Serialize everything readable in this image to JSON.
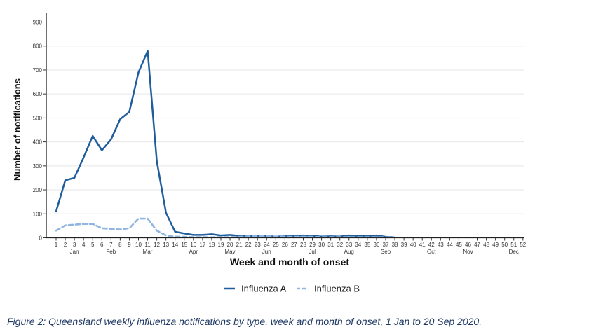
{
  "chart_data": {
    "type": "line",
    "xlabel": "Week and month of onset",
    "ylabel": "Number of notifications",
    "ylim": [
      0,
      900
    ],
    "yticks": [
      0,
      100,
      200,
      300,
      400,
      500,
      600,
      700,
      800,
      900
    ],
    "xlim": [
      1,
      52
    ],
    "x": [
      1,
      2,
      3,
      4,
      5,
      6,
      7,
      8,
      9,
      10,
      11,
      12,
      13,
      14,
      15,
      16,
      17,
      18,
      19,
      20,
      21,
      22,
      23,
      24,
      25,
      26,
      27,
      28,
      29,
      30,
      31,
      32,
      33,
      34,
      35,
      36,
      37,
      38,
      39,
      40,
      41,
      42,
      43,
      44,
      45,
      46,
      47,
      48,
      49,
      50,
      51,
      52
    ],
    "months": [
      {
        "label": "Jan",
        "week": 3
      },
      {
        "label": "Feb",
        "week": 7
      },
      {
        "label": "Mar",
        "week": 11
      },
      {
        "label": "Apr",
        "week": 16
      },
      {
        "label": "May",
        "week": 20
      },
      {
        "label": "Jun",
        "week": 24
      },
      {
        "label": "Jul",
        "week": 29
      },
      {
        "label": "Aug",
        "week": 33
      },
      {
        "label": "Sep",
        "week": 37
      },
      {
        "label": "Oct",
        "week": 42
      },
      {
        "label": "Nov",
        "week": 46
      },
      {
        "label": "Dec",
        "week": 51
      }
    ],
    "grid": "horizontal",
    "legend_position": "bottom",
    "series": [
      {
        "name": "Influenza A",
        "color": "#1f5d9c",
        "dash": "solid",
        "x": [
          1,
          2,
          3,
          4,
          5,
          6,
          7,
          8,
          9,
          10,
          11,
          12,
          13,
          14,
          15,
          16,
          17,
          18,
          19,
          20,
          21,
          22,
          23,
          24,
          25,
          26,
          27,
          28,
          29,
          30,
          31,
          32,
          33,
          34,
          35,
          36,
          37,
          38
        ],
        "values": [
          110,
          240,
          250,
          335,
          425,
          365,
          410,
          495,
          525,
          690,
          780,
          320,
          105,
          25,
          18,
          12,
          12,
          15,
          10,
          12,
          8,
          8,
          7,
          7,
          5,
          6,
          8,
          10,
          8,
          5,
          6,
          5,
          10,
          8,
          6,
          10,
          4,
          2
        ]
      },
      {
        "name": "Influenza B",
        "color": "#8fb5e0",
        "dash": "dashed",
        "x": [
          1,
          2,
          3,
          4,
          5,
          6,
          7,
          8,
          9,
          10,
          11,
          12,
          13,
          14,
          15,
          16,
          17,
          18,
          19,
          20,
          21,
          22,
          23,
          24,
          25,
          26,
          27,
          28,
          29,
          30,
          31,
          32,
          33,
          34,
          35,
          36,
          37,
          38
        ],
        "values": [
          30,
          52,
          55,
          58,
          58,
          40,
          37,
          35,
          40,
          80,
          80,
          30,
          10,
          5,
          4,
          3,
          3,
          2,
          3,
          3,
          4,
          6,
          7,
          7,
          5,
          4,
          4,
          4,
          4,
          3,
          3,
          3,
          3,
          3,
          3,
          3,
          2,
          2
        ]
      }
    ]
  },
  "caption": "Figure 2: Queensland weekly influenza notifications by type, week and month of onset, 1 Jan to 20 Sep 2020."
}
